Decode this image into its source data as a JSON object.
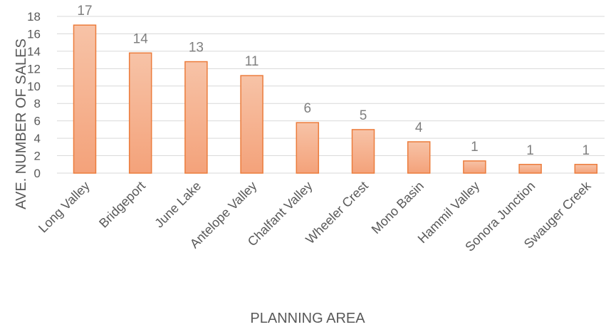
{
  "chart_data": {
    "type": "bar",
    "title": "",
    "xlabel": "PLANNING AREA",
    "ylabel": "AVE. NUMBER OF SALES",
    "ylim": [
      0,
      18
    ],
    "ytick_step": 2,
    "grid": true,
    "categories": [
      "Long Valley",
      "Bridgeport",
      "June Lake",
      "Antelope Valley",
      "Chalfant Valley",
      "Wheeler Crest",
      "Mono Basin",
      "Hammil Valley",
      "Sonora Junction",
      "Swauger Creek"
    ],
    "values": [
      17,
      13.8,
      12.8,
      11.2,
      5.8,
      5,
      3.6,
      1.4,
      1,
      1
    ],
    "data_labels": [
      "17",
      "14",
      "13",
      "11",
      "6",
      "5",
      "4",
      "1",
      "1",
      "1"
    ],
    "colors": {
      "bar_top": "#f7c3a7",
      "bar_bottom": "#f4a27a",
      "bar_stroke": "#ec7c3c",
      "grid": "#d9d9d9"
    }
  }
}
